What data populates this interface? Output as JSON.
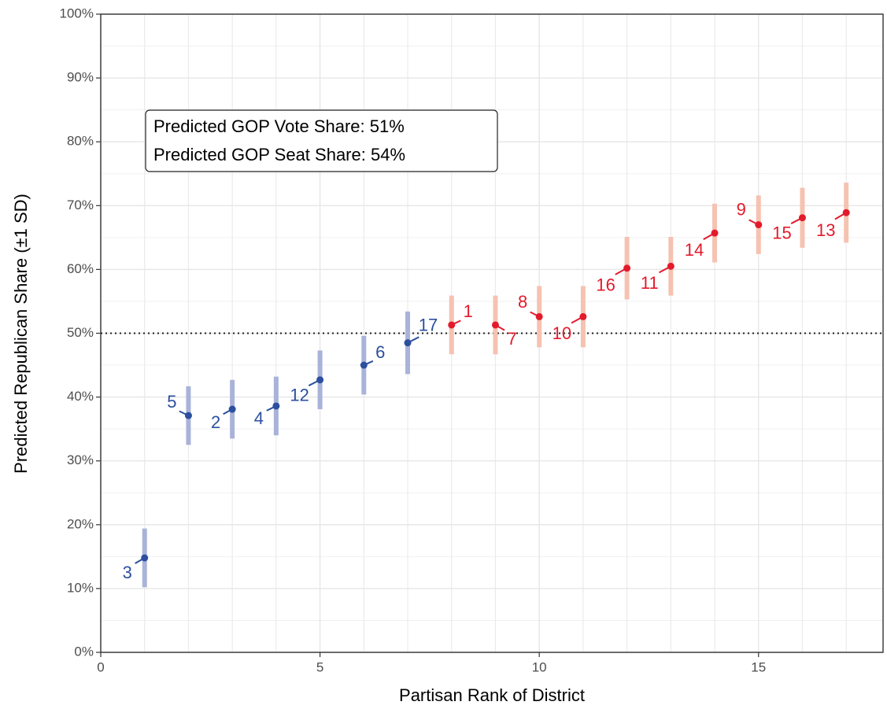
{
  "chart_data": {
    "type": "errorpoint",
    "xlabel": "Partisan Rank of District",
    "ylabel": "Predicted Republican Share (±1 SD)",
    "annotations": [
      "Predicted GOP Vote Share: 51%",
      "Predicted GOP Seat Share: 54%"
    ],
    "x": [
      1,
      2,
      3,
      4,
      5,
      6,
      7,
      8,
      9,
      10,
      11,
      12,
      13,
      14,
      15,
      16,
      17
    ],
    "values": [
      14.8,
      37.1,
      38.1,
      38.6,
      42.7,
      45.0,
      48.5,
      51.3,
      51.3,
      52.6,
      52.6,
      60.2,
      60.5,
      65.7,
      67.0,
      68.1,
      68.9
    ],
    "errors": [
      4.6,
      4.6,
      4.6,
      4.6,
      4.6,
      4.6,
      4.9,
      4.6,
      4.6,
      4.8,
      4.8,
      4.9,
      4.6,
      4.6,
      4.6,
      4.7,
      4.7
    ],
    "labels": [
      "3",
      "5",
      "2",
      "4",
      "12",
      "6",
      "17",
      "1",
      "7",
      "8",
      "10",
      "16",
      "11",
      "14",
      "9",
      "15",
      "13"
    ],
    "colors": [
      "#2c4f9e",
      "#2c4f9e",
      "#2c4f9e",
      "#2c4f9e",
      "#2c4f9e",
      "#2c4f9e",
      "#2c4f9e",
      "#e31a2c",
      "#e31a2c",
      "#e31a2c",
      "#e31a2c",
      "#e31a2c",
      "#e31a2c",
      "#e31a2c",
      "#e31a2c",
      "#e31a2c",
      "#e31a2c"
    ],
    "error_colors": [
      "#a9b3d9",
      "#a9b3d9",
      "#a9b3d9",
      "#a9b3d9",
      "#a9b3d9",
      "#a9b3d9",
      "#a9b3d9",
      "#f6c2b1",
      "#f6c2b1",
      "#f6c2b1",
      "#f6c2b1",
      "#f6c2b1",
      "#f6c2b1",
      "#f6c2b1",
      "#f6c2b1",
      "#f6c2b1",
      "#f6c2b1"
    ],
    "hline": 50,
    "xlim": [
      0,
      17.84
    ],
    "xticks": [
      0,
      5,
      10,
      15
    ],
    "xgrid": [
      1,
      2,
      3,
      4,
      6,
      7,
      8,
      9,
      11,
      12,
      13,
      14,
      16,
      17
    ],
    "ylim": [
      0,
      100
    ],
    "yticks": [
      {
        "value": 0,
        "label": "0%"
      },
      {
        "value": 10,
        "label": "10%"
      },
      {
        "value": 20,
        "label": "20%"
      },
      {
        "value": 30,
        "label": "30%"
      },
      {
        "value": 40,
        "label": "40%"
      },
      {
        "value": 50,
        "label": "50%"
      },
      {
        "value": 60,
        "label": "60%"
      },
      {
        "value": 70,
        "label": "70%"
      },
      {
        "value": 80,
        "label": "80%"
      },
      {
        "value": 90,
        "label": "90%"
      },
      {
        "value": 100,
        "label": "100%"
      }
    ],
    "yminor": [
      5,
      15,
      25,
      35,
      45,
      55,
      65,
      75,
      85,
      95
    ],
    "grid": true
  }
}
